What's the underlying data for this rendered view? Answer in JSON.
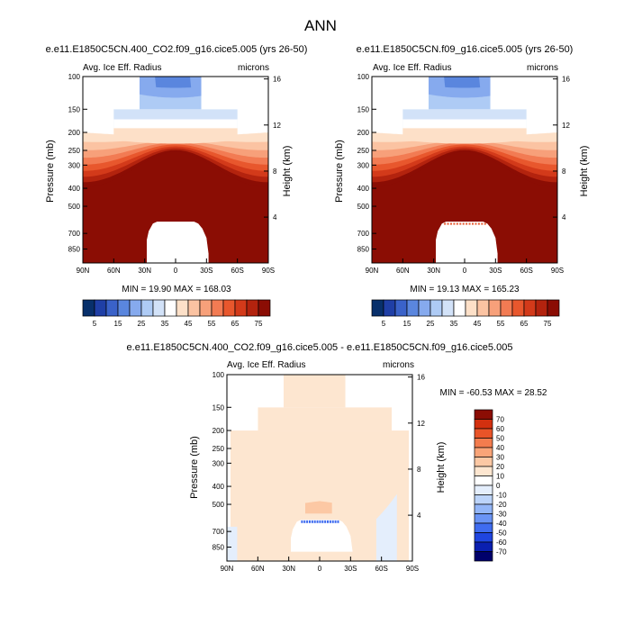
{
  "page_title": "ANN",
  "colors": {
    "abs_scale": [
      "#08306b",
      "#1f3fa6",
      "#3a62c9",
      "#5a86de",
      "#86aaee",
      "#aecbf5",
      "#d2e2f8",
      "#ffffff",
      "#fde0c8",
      "#fbc3a2",
      "#f7a07a",
      "#f27b53",
      "#e8572d",
      "#d33a1a",
      "#b3230e",
      "#8b0d04"
    ],
    "diff_scale": [
      "#00006b",
      "#0a1fb0",
      "#1f45e0",
      "#3f6cf0",
      "#6a94f5",
      "#93b6f8",
      "#bcd4fa",
      "#e4eefc",
      "#ffffff",
      "#fde6d0",
      "#fcc8a4",
      "#f9a478",
      "#f37c4e",
      "#e95428",
      "#d3300f",
      "#8b0d04"
    ]
  },
  "chart_data": [
    {
      "type": "heatmap",
      "title": "e.e11.E1850C5CN.400_CO2.f09_g16.cice5.005 (yrs 26-50)",
      "left_label": "Avg. Ice Eff. Radius",
      "right_label": "microns",
      "ylabel": "Pressure (mb)",
      "ylabel_right": "Height (km)",
      "xticks": [
        "90N",
        "60N",
        "30N",
        "0",
        "30S",
        "60S",
        "90S"
      ],
      "yticks": [
        "100",
        "150",
        "200",
        "250",
        "300",
        "400",
        "500",
        "700",
        "850"
      ],
      "yticks_right": [
        "16",
        "12",
        "8",
        "4"
      ],
      "stats": "MIN = 19.90  MAX = 168.03",
      "min": 19.9,
      "max": 168.03,
      "colorbar_labels": [
        "5",
        "15",
        "25",
        "35",
        "45",
        "55",
        "65",
        "75"
      ],
      "colorbar_levels": [
        0,
        5,
        10,
        15,
        20,
        25,
        30,
        35,
        40,
        45,
        50,
        55,
        60,
        65,
        70,
        75
      ]
    },
    {
      "type": "heatmap",
      "title": "e.e11.E1850C5CN.f09_g16.cice5.005 (yrs 26-50)",
      "left_label": "Avg. Ice Eff. Radius",
      "right_label": "microns",
      "ylabel": "Pressure (mb)",
      "ylabel_right": "Height (km)",
      "xticks": [
        "90N",
        "60N",
        "30N",
        "0",
        "30S",
        "60S",
        "90S"
      ],
      "yticks": [
        "100",
        "150",
        "200",
        "250",
        "300",
        "400",
        "500",
        "700",
        "850"
      ],
      "yticks_right": [
        "16",
        "12",
        "8",
        "4"
      ],
      "stats": "MIN = 19.13  MAX = 165.23",
      "min": 19.13,
      "max": 165.23,
      "colorbar_labels": [
        "5",
        "15",
        "25",
        "35",
        "45",
        "55",
        "65",
        "75"
      ],
      "colorbar_levels": [
        0,
        5,
        10,
        15,
        20,
        25,
        30,
        35,
        40,
        45,
        50,
        55,
        60,
        65,
        70,
        75
      ]
    },
    {
      "type": "heatmap",
      "title": "e.e11.E1850C5CN.400_CO2.f09_g16.cice5.005 - e.e11.E1850C5CN.f09_g16.cice5.005",
      "left_label": "Avg. Ice Eff. Radius",
      "right_label": "microns",
      "ylabel": "Pressure (mb)",
      "ylabel_right": "Height (km)",
      "xticks": [
        "90N",
        "60N",
        "30N",
        "0",
        "30S",
        "60S",
        "90S"
      ],
      "yticks": [
        "100",
        "150",
        "200",
        "250",
        "300",
        "400",
        "500",
        "700",
        "850"
      ],
      "yticks_right": [
        "16",
        "12",
        "8",
        "4"
      ],
      "stats": "MIN = -60.53  MAX =  28.52",
      "min": -60.53,
      "max": 28.52,
      "colorbar_labels": [
        "70",
        "60",
        "50",
        "40",
        "30",
        "20",
        "10",
        "0",
        "-10",
        "-20",
        "-30",
        "-40",
        "-50",
        "-60",
        "-70"
      ]
    }
  ]
}
